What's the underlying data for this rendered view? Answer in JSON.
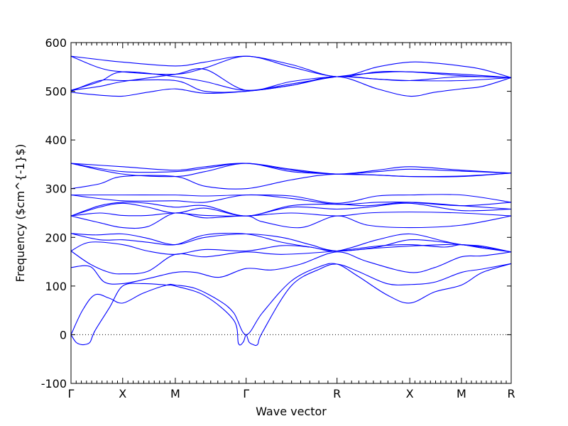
{
  "chart_data": {
    "type": "line",
    "xlabel": "Wave vector",
    "ylabel": "Frequency ($cm^{-1}$)",
    "ylim": [
      -100,
      600
    ],
    "yticks": [
      -100,
      0,
      100,
      200,
      300,
      400,
      500,
      600
    ],
    "xlim": [
      0,
      4.6
    ],
    "high_symmetry_points": [
      {
        "label": "Γ",
        "x": 0
      },
      {
        "label": "X",
        "x": 0.54
      },
      {
        "label": "M",
        "x": 1.09
      },
      {
        "label": "Γ",
        "x": 1.83
      },
      {
        "label": "R",
        "x": 2.78
      },
      {
        "label": "X",
        "x": 3.54
      },
      {
        "label": "M",
        "x": 4.08
      },
      {
        "label": "R",
        "x": 4.6
      }
    ],
    "zero_line": {
      "y": 0,
      "style": "dotted"
    },
    "line_color": "#0000ff",
    "series": [
      {
        "x": [
          0,
          0.12,
          0.25,
          0.4,
          0.54,
          0.75,
          1.0,
          1.09,
          1.3,
          1.55,
          1.7,
          1.83,
          2.0,
          2.3,
          2.6,
          2.78,
          3.0,
          3.3,
          3.54,
          3.8,
          4.08,
          4.3,
          4.6
        ],
        "y": [
          0,
          50,
          82,
          75,
          65,
          85,
          102,
          102,
          95,
          70,
          45,
          0,
          45,
          110,
          140,
          145,
          120,
          82,
          65,
          88,
          102,
          128,
          146
        ]
      },
      {
        "x": [
          0,
          0.05,
          0.1,
          0.15,
          0.2,
          0.25,
          0.4,
          0.54,
          0.75,
          1.0,
          1.09,
          1.4,
          1.7,
          1.75,
          1.8,
          1.83,
          1.86,
          1.9,
          1.95,
          2.0,
          2.3,
          2.6,
          2.78,
          3.0,
          3.3,
          3.54,
          3.8,
          4.08,
          4.3,
          4.6
        ],
        "y": [
          0,
          -15,
          -20,
          -20,
          -15,
          8,
          55,
          100,
          105,
          102,
          100,
          80,
          30,
          -18,
          -15,
          0,
          -15,
          -20,
          -20,
          5,
          100,
          135,
          145,
          130,
          105,
          103,
          108,
          128,
          135,
          146
        ]
      },
      {
        "x": [
          0,
          0.2,
          0.35,
          0.54,
          0.8,
          1.09,
          1.3,
          1.55,
          1.83,
          2.1,
          2.4,
          2.78,
          3.1,
          3.54,
          3.8,
          4.08,
          4.3,
          4.6
        ],
        "y": [
          138,
          140,
          108,
          105,
          115,
          128,
          128,
          118,
          136,
          133,
          145,
          170,
          150,
          128,
          138,
          160,
          162,
          170
        ]
      },
      {
        "x": [
          0,
          0.2,
          0.4,
          0.54,
          0.8,
          1.09,
          1.4,
          1.83,
          2.2,
          2.78,
          3.2,
          3.54,
          3.9,
          4.08,
          4.3,
          4.6
        ],
        "y": [
          172,
          145,
          128,
          125,
          130,
          165,
          160,
          170,
          165,
          172,
          182,
          185,
          180,
          185,
          180,
          170
        ]
      },
      {
        "x": [
          0,
          0.2,
          0.54,
          0.8,
          1.09,
          1.4,
          1.83,
          2.2,
          2.5,
          2.78,
          3.2,
          3.54,
          3.9,
          4.08,
          4.3,
          4.6
        ],
        "y": [
          172,
          190,
          185,
          172,
          165,
          175,
          172,
          183,
          180,
          172,
          195,
          207,
          192,
          185,
          182,
          170
        ]
      },
      {
        "x": [
          0,
          0.25,
          0.54,
          0.8,
          1.09,
          1.4,
          1.83,
          2.2,
          2.5,
          2.78,
          3.2,
          3.54,
          3.9,
          4.08,
          4.3,
          4.6
        ],
        "y": [
          208,
          205,
          207,
          198,
          185,
          200,
          207,
          200,
          185,
          172,
          180,
          195,
          190,
          185,
          180,
          170
        ]
      },
      {
        "x": [
          0,
          0.3,
          0.54,
          0.8,
          1.09,
          1.4,
          1.83,
          2.2,
          2.5,
          2.78,
          3.2,
          3.54,
          3.9,
          4.08,
          4.3,
          4.6
        ],
        "y": [
          208,
          195,
          195,
          190,
          185,
          205,
          207,
          190,
          180,
          172,
          178,
          182,
          185,
          185,
          178,
          170
        ]
      },
      {
        "x": [
          0,
          0.3,
          0.54,
          0.8,
          1.09,
          1.4,
          1.83,
          2.0,
          2.4,
          2.78,
          3.1,
          3.54,
          4.08,
          4.6
        ],
        "y": [
          244,
          230,
          220,
          222,
          250,
          240,
          244,
          232,
          220,
          244,
          225,
          220,
          225,
          244
        ]
      },
      {
        "x": [
          0,
          0.3,
          0.54,
          0.8,
          1.09,
          1.4,
          1.83,
          2.3,
          2.78,
          3.1,
          3.54,
          4.08,
          4.6
        ],
        "y": [
          244,
          250,
          245,
          245,
          250,
          245,
          244,
          250,
          244,
          250,
          252,
          250,
          244
        ]
      },
      {
        "x": [
          0,
          0.3,
          0.54,
          0.8,
          1.09,
          1.4,
          1.83,
          2.3,
          2.78,
          3.1,
          3.54,
          4.08,
          4.6
        ],
        "y": [
          244,
          262,
          270,
          262,
          250,
          260,
          244,
          262,
          258,
          262,
          270,
          255,
          258
        ]
      },
      {
        "x": [
          0,
          0.3,
          0.54,
          0.8,
          1.09,
          1.4,
          1.83,
          2.3,
          2.78,
          3.1,
          3.54,
          4.08,
          4.6
        ],
        "y": [
          244,
          265,
          272,
          270,
          262,
          265,
          244,
          265,
          268,
          265,
          272,
          265,
          258
        ]
      },
      {
        "x": [
          0,
          0.54,
          1.09,
          1.4,
          1.83,
          2.3,
          2.78,
          3.2,
          3.54,
          4.08,
          4.6
        ],
        "y": [
          287,
          287,
          287,
          285,
          287,
          285,
          270,
          285,
          287,
          287,
          272
        ]
      },
      {
        "x": [
          0,
          0.54,
          1.09,
          1.4,
          1.83,
          2.3,
          2.78,
          3.2,
          3.54,
          4.08,
          4.6
        ],
        "y": [
          287,
          275,
          275,
          272,
          287,
          280,
          268,
          272,
          272,
          265,
          272
        ]
      },
      {
        "x": [
          0,
          0.3,
          0.54,
          1.09,
          1.4,
          1.83,
          2.3,
          2.78,
          3.54,
          4.08,
          4.6
        ],
        "y": [
          300,
          310,
          325,
          325,
          305,
          300,
          318,
          330,
          325,
          325,
          332
        ]
      },
      {
        "x": [
          0,
          0.54,
          1.09,
          1.4,
          1.83,
          2.3,
          2.78,
          3.2,
          3.54,
          4.08,
          4.6
        ],
        "y": [
          352,
          345,
          338,
          345,
          352,
          338,
          330,
          338,
          345,
          338,
          332
        ]
      },
      {
        "x": [
          0,
          0.54,
          1.09,
          1.4,
          1.83,
          2.3,
          2.78,
          3.2,
          3.54,
          4.08,
          4.6
        ],
        "y": [
          352,
          335,
          335,
          342,
          352,
          340,
          330,
          335,
          340,
          336,
          332
        ]
      },
      {
        "x": [
          0,
          0.54,
          1.09,
          1.4,
          1.83,
          2.3,
          2.78,
          3.2,
          3.54,
          4.08,
          4.6
        ],
        "y": [
          352,
          330,
          325,
          335,
          352,
          335,
          330,
          328,
          325,
          326,
          332
        ]
      },
      {
        "x": [
          0,
          0.3,
          0.54,
          0.8,
          1.09,
          1.4,
          1.83,
          2.3,
          2.78,
          3.2,
          3.54,
          3.8,
          4.08,
          4.3,
          4.6
        ],
        "y": [
          498,
          492,
          490,
          498,
          505,
          496,
          500,
          512,
          530,
          505,
          490,
          498,
          505,
          510,
          528
        ]
      },
      {
        "x": [
          0,
          0.3,
          0.54,
          1.09,
          1.4,
          1.83,
          2.3,
          2.78,
          3.2,
          3.54,
          4.08,
          4.6
        ],
        "y": [
          500,
          522,
          522,
          522,
          500,
          500,
          512,
          530,
          525,
          522,
          522,
          528
        ]
      },
      {
        "x": [
          0,
          0.3,
          0.54,
          1.09,
          1.4,
          1.83,
          2.3,
          2.78,
          3.2,
          3.54,
          4.08,
          4.6
        ],
        "y": [
          502,
          520,
          540,
          530,
          520,
          502,
          515,
          530,
          538,
          540,
          532,
          528
        ]
      },
      {
        "x": [
          0,
          0.3,
          0.54,
          1.09,
          1.4,
          1.83,
          2.3,
          2.78,
          3.2,
          3.54,
          4.08,
          4.6
        ],
        "y": [
          502,
          510,
          520,
          535,
          545,
          502,
          520,
          530,
          525,
          522,
          530,
          528
        ]
      },
      {
        "x": [
          0,
          0.3,
          0.54,
          1.09,
          1.4,
          1.83,
          2.3,
          2.78,
          3.2,
          3.54,
          3.8,
          4.08,
          4.3,
          4.6
        ],
        "y": [
          572,
          565,
          560,
          552,
          560,
          572,
          555,
          530,
          550,
          560,
          558,
          552,
          545,
          528
        ]
      },
      {
        "x": [
          0,
          0.3,
          0.54,
          1.09,
          1.4,
          1.83,
          2.3,
          2.78,
          3.2,
          3.54,
          4.08,
          4.6
        ],
        "y": [
          572,
          548,
          540,
          535,
          548,
          572,
          550,
          530,
          540,
          540,
          535,
          528
        ]
      }
    ]
  }
}
